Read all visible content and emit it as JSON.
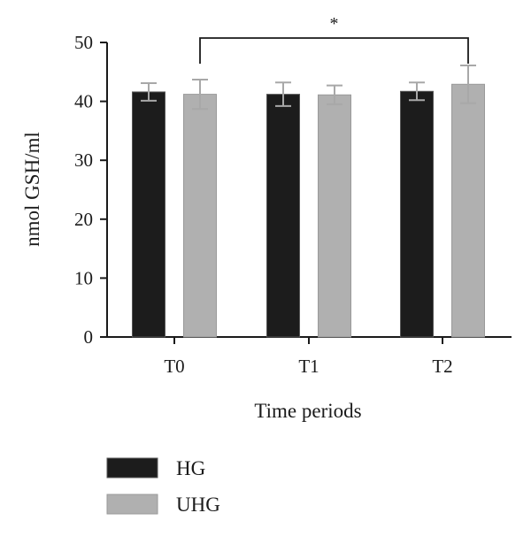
{
  "chart_data": {
    "type": "bar",
    "categories": [
      "T0",
      "T1",
      "T2"
    ],
    "series": [
      {
        "name": "HG",
        "color": "#1c1c1c",
        "values": [
          41.6,
          41.2,
          41.7
        ],
        "errors": [
          1.5,
          2.0,
          1.5
        ]
      },
      {
        "name": "UHG",
        "color": "#b0b0b0",
        "values": [
          41.2,
          41.1,
          42.9
        ],
        "errors": [
          2.5,
          1.6,
          3.2
        ]
      }
    ],
    "xlabel": "Time periods",
    "ylabel": "nmol GSH/ml",
    "ylim": [
      0,
      50
    ],
    "yticks": [
      0,
      10,
      20,
      30,
      40,
      50
    ],
    "grid": false,
    "legend": "bottom-left",
    "significance": {
      "from": "T0",
      "to": "T2",
      "label": "*"
    }
  }
}
